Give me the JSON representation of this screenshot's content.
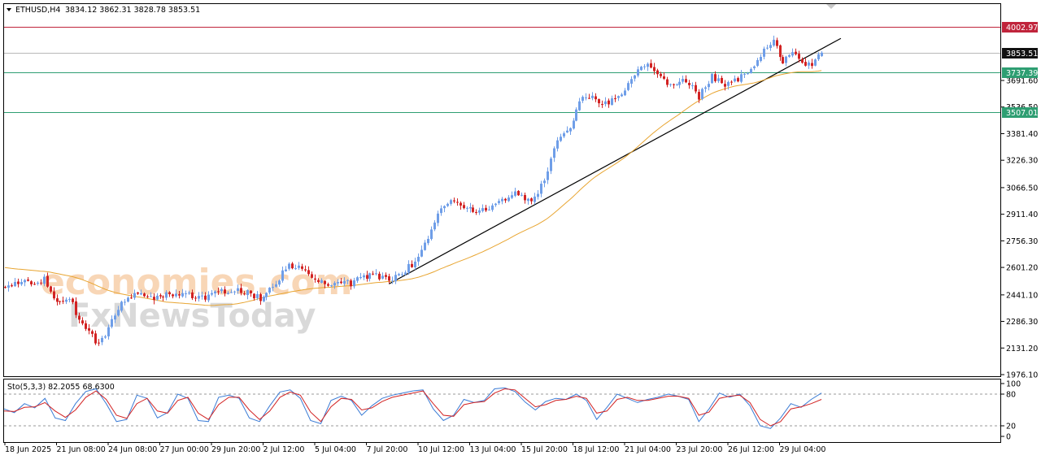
{
  "header": {
    "symbol": "ETHUSD,H4",
    "ohlc": "3834.12 3862.31 3828.78 3853.51"
  },
  "watermark": {
    "line1": "economies.com",
    "line2": "FxNewsToday"
  },
  "colors": {
    "bull": "#6f9ee8",
    "bear": "#d22323",
    "ma": "#e8a531",
    "trendline": "#000000",
    "level_red": "#c0243b",
    "level_green": "#2e9e72",
    "price_label_bg": "#111111",
    "stoch_main": "#3a7bd5",
    "stoch_signal": "#d22323",
    "grid_dash": "#9a9a9a",
    "axis": "#000000"
  },
  "chart_data": [
    {
      "type": "candlestick",
      "title": "ETHUSD,H4",
      "ylim": [
        1976.1,
        4060
      ],
      "y_ticks": [
        "3691.60",
        "3536.50",
        "3381.40",
        "3226.30",
        "3066.50",
        "2911.40",
        "2756.30",
        "2601.20",
        "2441.10",
        "2286.30",
        "2131.20",
        "1976.10"
      ],
      "x_ticks": [
        "18 Jun 2025",
        "21 Jun 08:00",
        "24 Jun 08:00",
        "27 Jun 00:00",
        "29 Jun 20:00",
        "2 Jul 12:00",
        "5 Jul 04:00",
        "7 Jul 20:00",
        "10 Jul 12:00",
        "13 Jul 04:00",
        "15 Jul 20:00",
        "18 Jul 12:00",
        "21 Jul 04:00",
        "23 Jul 20:00",
        "26 Jul 12:00",
        "29 Jul 04:00"
      ],
      "levels": [
        {
          "price": 4002.97,
          "label": "4002.97",
          "color": "red"
        },
        {
          "price": 3853.51,
          "label": "3853.51",
          "color": "current"
        },
        {
          "price": 3737.39,
          "label": "3737.39",
          "color": "green"
        },
        {
          "price": 3507.01,
          "label": "3507.01",
          "color": "green"
        }
      ],
      "trendline": {
        "from": {
          "x": "7 Jul 20:00",
          "y": 2505
        },
        "to": {
          "x": "31 Jul 04:00",
          "y": 3937
        }
      },
      "close_path": [
        [
          "18 Jun 2025",
          2485
        ],
        [
          "19 Jun 00:00",
          2525
        ],
        [
          "19 Jun 12:00",
          2515
        ],
        [
          "20 Jun 00:00",
          2535
        ],
        [
          "20 Jun 12:00",
          2425
        ],
        [
          "21 Jun 00:00",
          2390
        ],
        [
          "21 Jun 08:00",
          2420
        ],
        [
          "21 Jun 20:00",
          2300
        ],
        [
          "22 Jun 08:00",
          2220
        ],
        [
          "22 Jun 20:00",
          2150
        ],
        [
          "23 Jun 08:00",
          2240
        ],
        [
          "23 Jun 20:00",
          2360
        ],
        [
          "24 Jun 08:00",
          2440
        ],
        [
          "25 Jun 00:00",
          2450
        ],
        [
          "25 Jun 16:00",
          2420
        ],
        [
          "26 Jun 08:00",
          2440
        ],
        [
          "27 Jun 00:00",
          2430
        ],
        [
          "27 Jun 16:00",
          2440
        ],
        [
          "28 Jun 08:00",
          2425
        ],
        [
          "29 Jun 00:00",
          2450
        ],
        [
          "29 Jun 20:00",
          2480
        ],
        [
          "30 Jun 12:00",
          2450
        ],
        [
          "1 Jul 04:00",
          2420
        ],
        [
          "1 Jul 20:00",
          2480
        ],
        [
          "2 Jul 12:00",
          2600
        ],
        [
          "3 Jul 04:00",
          2620
        ],
        [
          "3 Jul 20:00",
          2560
        ],
        [
          "4 Jul 12:00",
          2500
        ],
        [
          "5 Jul 04:00",
          2500
        ],
        [
          "5 Jul 20:00",
          2510
        ],
        [
          "6 Jul 12:00",
          2540
        ],
        [
          "7 Jul 04:00",
          2560
        ],
        [
          "7 Jul 20:00",
          2520
        ],
        [
          "8 Jul 12:00",
          2570
        ],
        [
          "9 Jul 04:00",
          2640
        ],
        [
          "9 Jul 20:00",
          2780
        ],
        [
          "10 Jul 12:00",
          2960
        ],
        [
          "11 Jul 04:00",
          2990
        ],
        [
          "11 Jul 20:00",
          2950
        ],
        [
          "12 Jul 12:00",
          2930
        ],
        [
          "13 Jul 04:00",
          2960
        ],
        [
          "13 Jul 20:00",
          3010
        ],
        [
          "14 Jul 12:00",
          3030
        ],
        [
          "15 Jul 04:00",
          2980
        ],
        [
          "15 Jul 20:00",
          3120
        ],
        [
          "16 Jul 12:00",
          3360
        ],
        [
          "17 Jul 04:00",
          3420
        ],
        [
          "17 Jul 20:00",
          3600
        ],
        [
          "18 Jul 12:00",
          3580
        ],
        [
          "19 Jul 04:00",
          3550
        ],
        [
          "19 Jul 20:00",
          3620
        ],
        [
          "20 Jul 12:00",
          3740
        ],
        [
          "21 Jul 04:00",
          3790
        ],
        [
          "21 Jul 20:00",
          3700
        ],
        [
          "22 Jul 12:00",
          3650
        ],
        [
          "23 Jul 04:00",
          3700
        ],
        [
          "23 Jul 20:00",
          3600
        ],
        [
          "24 Jul 12:00",
          3720
        ],
        [
          "25 Jul 04:00",
          3650
        ],
        [
          "25 Jul 20:00",
          3700
        ],
        [
          "26 Jul 12:00",
          3760
        ],
        [
          "27 Jul 04:00",
          3860
        ],
        [
          "27 Jul 16:00",
          3930
        ],
        [
          "28 Jul 04:00",
          3790
        ],
        [
          "28 Jul 16:00",
          3870
        ],
        [
          "29 Jul 04:00",
          3800
        ],
        [
          "29 Jul 16:00",
          3790
        ],
        [
          "30 Jul 04:00",
          3853.51
        ]
      ]
    },
    {
      "type": "line",
      "title": "Sto(5,3,3) 82.2055 68.6300",
      "ylim": [
        0,
        100
      ],
      "y_ticks": [
        "100",
        "80",
        "20",
        "0"
      ],
      "levels": [
        80,
        20
      ],
      "series": [
        {
          "name": "",
          "role": "main",
          "values": [
            52,
            45,
            62,
            54,
            72,
            35,
            30,
            62,
            85,
            90,
            62,
            28,
            32,
            78,
            72,
            35,
            45,
            80,
            72,
            30,
            28,
            74,
            78,
            72,
            35,
            28,
            58,
            84,
            88,
            72,
            30,
            24,
            68,
            76,
            68,
            40,
            58,
            72,
            78,
            82,
            86,
            88,
            52,
            30,
            40,
            70,
            64,
            68,
            90,
            92,
            85,
            65,
            50,
            66,
            72,
            70,
            80,
            68,
            32,
            55,
            80,
            72,
            64,
            70,
            74,
            80,
            76,
            70,
            28,
            52,
            82,
            74,
            80,
            58,
            20,
            15,
            35,
            62,
            55,
            70,
            82
          ]
        },
        {
          "name": "",
          "role": "signal",
          "values": [
            48,
            47,
            55,
            56,
            64,
            48,
            36,
            50,
            74,
            86,
            70,
            40,
            34,
            62,
            72,
            48,
            44,
            68,
            74,
            44,
            32,
            60,
            74,
            74,
            50,
            32,
            48,
            74,
            84,
            78,
            46,
            28,
            56,
            72,
            70,
            50,
            54,
            66,
            74,
            78,
            82,
            86,
            62,
            40,
            38,
            60,
            64,
            66,
            82,
            90,
            88,
            72,
            56,
            60,
            68,
            70,
            76,
            72,
            44,
            48,
            70,
            74,
            68,
            68,
            72,
            76,
            76,
            72,
            40,
            46,
            72,
            76,
            78,
            64,
            32,
            20,
            28,
            52,
            56,
            62,
            70
          ]
        }
      ]
    }
  ]
}
